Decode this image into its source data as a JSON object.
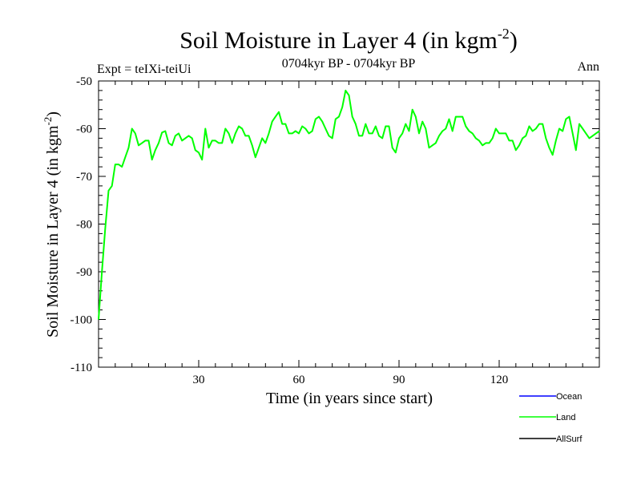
{
  "chart_data": {
    "type": "line",
    "title": "Soil Moisture in Layer 4 (in kgm",
    "title_sup": "-2",
    "title_suffix": ")",
    "subtitle": "0704kyr BP - 0704kyr BP",
    "expt_label": "Expt = teIXi-teiUi",
    "season": "Ann",
    "xlabel": "Time (in years since start)",
    "ylabel": "Soil Moisture in Layer 4 (in kgm",
    "ylabel_sup": "-2",
    "ylabel_suffix": ")",
    "xlim": [
      0,
      150
    ],
    "ylim": [
      -110,
      -50
    ],
    "xticks": [
      30,
      60,
      90,
      120
    ],
    "yticks": [
      -110,
      -100,
      -90,
      -80,
      -70,
      -60,
      -50
    ],
    "legend_position": "bottom-right",
    "series": [
      {
        "name": "Ocean",
        "color": "#0000ff",
        "values": []
      },
      {
        "name": "Land",
        "color": "#00ff00",
        "x": [
          0,
          1,
          2,
          3,
          4,
          5,
          6,
          7,
          8,
          9,
          10,
          11,
          12,
          13,
          14,
          15,
          16,
          17,
          18,
          19,
          20,
          21,
          22,
          23,
          24,
          25,
          26,
          27,
          28,
          29,
          30,
          31,
          32,
          33,
          34,
          35,
          36,
          37,
          38,
          39,
          40,
          41,
          42,
          43,
          44,
          45,
          46,
          47,
          48,
          49,
          50,
          51,
          52,
          53,
          54,
          55,
          56,
          57,
          58,
          59,
          60,
          61,
          62,
          63,
          64,
          65,
          66,
          67,
          68,
          69,
          70,
          71,
          72,
          73,
          74,
          75,
          76,
          77,
          78,
          79,
          80,
          81,
          82,
          83,
          84,
          85,
          86,
          87,
          88,
          89,
          90,
          91,
          92,
          93,
          94,
          95,
          96,
          97,
          98,
          99,
          100,
          101,
          102,
          103,
          104,
          105,
          106,
          107,
          108,
          109,
          110,
          111,
          112,
          113,
          114,
          115,
          116,
          117,
          118,
          119,
          120,
          121,
          122,
          123,
          124,
          125,
          126,
          127,
          128,
          129,
          130,
          131,
          132,
          133,
          134,
          135,
          136,
          137,
          138,
          139,
          140,
          141,
          142,
          143,
          144,
          145,
          146,
          147,
          148,
          149,
          150
        ],
        "values": [
          -100,
          -90,
          -81,
          -73,
          -72,
          -67.5,
          -67.5,
          -68,
          -66,
          -64,
          -60,
          -61,
          -63.5,
          -63,
          -62.5,
          -62.5,
          -66.5,
          -64.5,
          -63,
          -60.8,
          -60.5,
          -63,
          -63.5,
          -61.5,
          -61,
          -62.5,
          -62,
          -61.5,
          -62,
          -64.5,
          -65,
          -66.5,
          -60,
          -64,
          -62.5,
          -62.5,
          -63,
          -63,
          -60,
          -61,
          -63,
          -61,
          -59.5,
          -60,
          -61.5,
          -61.5,
          -63.5,
          -66,
          -64,
          -62,
          -63,
          -61,
          -58.5,
          -57.5,
          -56.5,
          -59,
          -59,
          -61,
          -61,
          -60.5,
          -61,
          -59.5,
          -60,
          -61,
          -60.5,
          -58,
          -57.5,
          -58.5,
          -60,
          -61.5,
          -62,
          -58,
          -57.5,
          -55.5,
          -52,
          -53,
          -57.5,
          -59,
          -61.5,
          -61.5,
          -59,
          -61,
          -61,
          -59.5,
          -61.5,
          -62,
          -59.5,
          -59.5,
          -64,
          -65,
          -62,
          -61,
          -59,
          -60.5,
          -56,
          -57.5,
          -61,
          -58.5,
          -60,
          -64,
          -63.5,
          -63,
          -61.5,
          -60.5,
          -60,
          -58,
          -60.5,
          -57.5,
          -57.5,
          -57.5,
          -59.5,
          -60.5,
          -61,
          -62,
          -62.5,
          -63.5,
          -63,
          -63,
          -62,
          -60,
          -61,
          -61,
          -61,
          -62.5,
          -62.5,
          -64.5,
          -63.5,
          -62,
          -61.5,
          -59.5,
          -60.5,
          -60,
          -59,
          -59,
          -62,
          -64,
          -65.5,
          -62.5,
          -60,
          -60.5,
          -58,
          -57.5,
          -61,
          -64.5,
          -59,
          -60,
          -61,
          -62,
          -61.5,
          -61,
          -60.5
        ]
      },
      {
        "name": "AllSurf",
        "color": "#000000",
        "values": []
      }
    ]
  }
}
